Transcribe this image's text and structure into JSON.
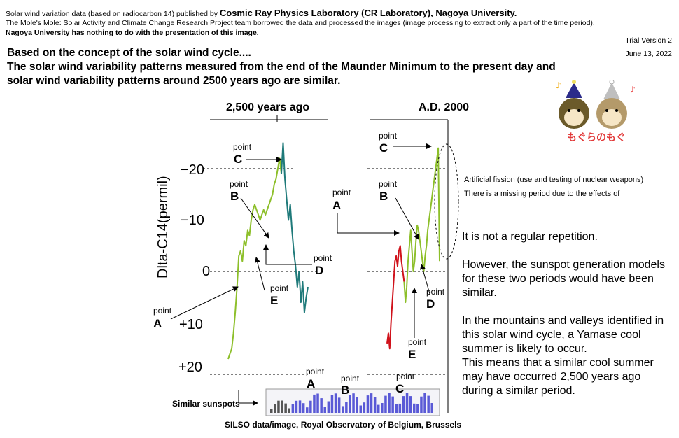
{
  "header": {
    "line1_prefix": "Solar wind variation data (based on radiocarbon 14) published by ",
    "line1_org": "Cosmic Ray Physics Laboratory (CR Laboratory), Nagoya University.",
    "line2": "The Mole's Mole: Solar Activity and Climate Change Research Project team borrowed the data and processed the images (image processing to extract only a part of the time period).",
    "line3": "Nagoya University has nothing to do with the presentation of this image.",
    "version": "Trial Version 2",
    "date": "June 13, 2022"
  },
  "title": {
    "line1": "Based on the concept of the solar wind cycle....",
    "line2": "The solar wind variability patterns measured from the end of the Maunder Minimum to the present day and",
    "line3": "solar wind variability patterns around 2500 years ago are similar."
  },
  "logo_text": "もぐらのもぐ",
  "chart_data": [
    {
      "type": "line",
      "title": "2,500 years ago",
      "ylabel": "Dlta-C14(permil)",
      "yticks": [
        "−20",
        "−10",
        "0",
        "+10",
        "+20"
      ],
      "ytick_values": [
        -20,
        -10,
        0,
        10,
        20
      ],
      "ylim": [
        -25,
        20
      ],
      "y_inverted": true,
      "grid": "dashed horizontal",
      "series": [
        {
          "color": "#8dbf2a",
          "x": [
            0,
            1,
            2,
            3,
            4,
            5,
            6,
            7,
            8,
            9,
            10,
            11,
            12,
            13,
            14,
            15,
            16,
            17,
            18,
            19,
            20,
            21,
            22,
            23,
            24,
            25,
            26,
            27,
            28,
            29,
            30
          ],
          "values": [
            17,
            16,
            15,
            12,
            8,
            3,
            -3,
            -4,
            -2,
            -6,
            -5,
            -8,
            -7,
            -10,
            -12,
            -13,
            -12,
            -11,
            -10,
            -11,
            -12,
            -11,
            -12,
            -13,
            -14,
            -15,
            -17,
            -18,
            -20,
            -22,
            -19
          ]
        },
        {
          "color": "#1f7a7a",
          "x": [
            30,
            31,
            32,
            33,
            34,
            35,
            36,
            37,
            38,
            39,
            40,
            41,
            42,
            43,
            44,
            45
          ],
          "values": [
            -19,
            -25,
            -18,
            -14,
            -10,
            -13,
            -8,
            -4,
            -1,
            3,
            0,
            6,
            2,
            8,
            5,
            3
          ]
        }
      ]
    },
    {
      "type": "line",
      "title": "A.D. 2000",
      "ylim": [
        -25,
        20
      ],
      "y_inverted": true,
      "series": [
        {
          "color": "#d0121b",
          "x": [
            0,
            1,
            2,
            3,
            4,
            5,
            6,
            7,
            8,
            9,
            10,
            11,
            12,
            13
          ],
          "values": [
            14,
            12,
            15,
            10,
            6,
            2,
            -2,
            -3,
            -1,
            -4,
            -5,
            -2,
            0,
            2
          ]
        },
        {
          "color": "#8dbf2a",
          "x": [
            13,
            14,
            15,
            16,
            17,
            18,
            19,
            20,
            21,
            22,
            23,
            24,
            25,
            26,
            27,
            28,
            29,
            30,
            31,
            32,
            33,
            34,
            35,
            36,
            37,
            38,
            39,
            40
          ],
          "values": [
            2,
            6,
            3,
            -2,
            -5,
            -8,
            -4,
            0,
            -2,
            -6,
            -9,
            -8,
            -6,
            -4,
            -2,
            0,
            -3,
            -5,
            -8,
            -10,
            -12,
            -14,
            -16,
            -18,
            -20,
            -22,
            -24,
            -2
          ]
        }
      ]
    }
  ],
  "labels": {
    "point_word": "point",
    "A": "A",
    "B": "B",
    "C": "C",
    "D": "D",
    "E": "E",
    "fission_line1": "Artificial fission (use and testing of nuclear weapons)",
    "fission_line2": "There is a missing period due to the effects of",
    "note1": "It is not a regular repetition.",
    "note2": "However, the sunspot generation models for these two periods would have been similar.",
    "note3": "In the mountains and valleys identified in this solar wind cycle, a Yamase cool summer is likely to occur.",
    "note4": "This means that a similar cool summer may have occurred 2,500 years ago during a similar period.",
    "similar_sunspots": "Similar sunspots",
    "credit": "SILSO data/image, Royal Observatory of Belgium, Brussels"
  }
}
